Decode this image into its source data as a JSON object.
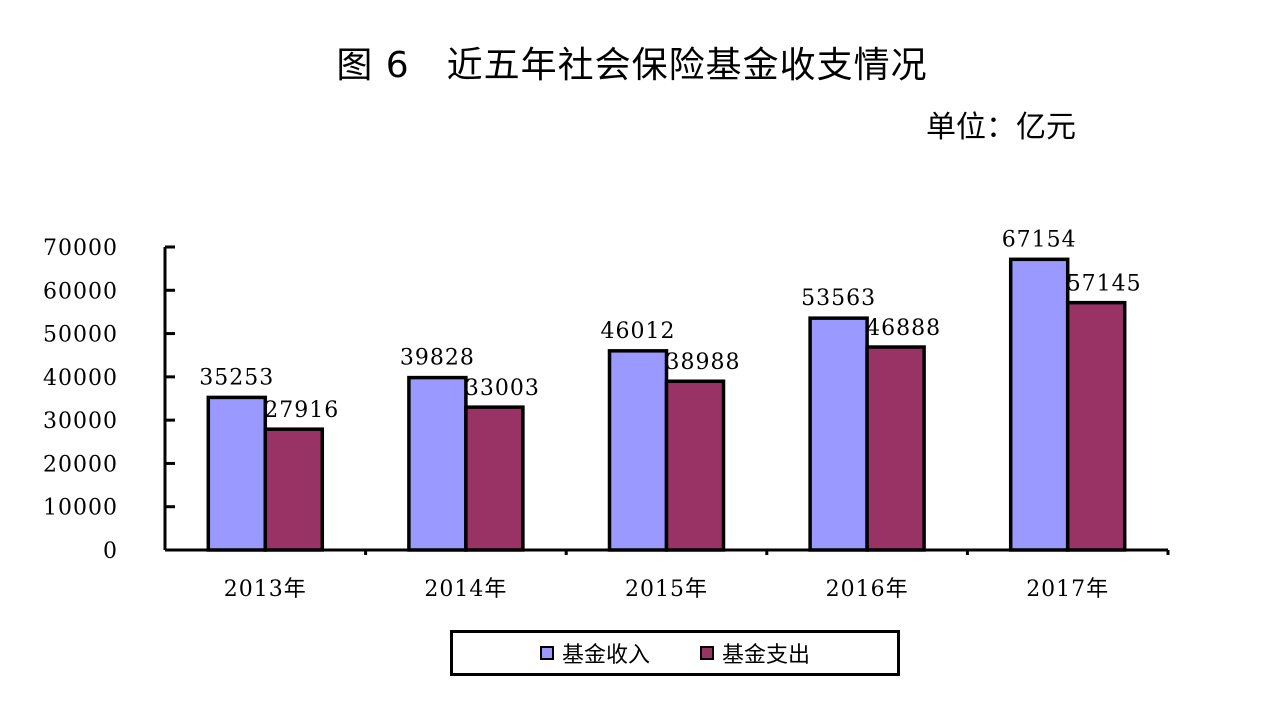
{
  "chart_data": {
    "type": "bar",
    "title": "图 6　近五年社会保险基金收支情况",
    "unit": "单位：亿元",
    "categories": [
      "2013年",
      "2014年",
      "2015年",
      "2016年",
      "2017年"
    ],
    "series": [
      {
        "name": "基金收入",
        "values": [
          35253,
          39828,
          46012,
          53563,
          67154
        ],
        "color": "#9999FF"
      },
      {
        "name": "基金支出",
        "values": [
          27916,
          33003,
          38988,
          46888,
          57145
        ],
        "color": "#993366"
      }
    ],
    "ylim": [
      0,
      70000
    ],
    "yticks": [
      "0",
      "10000",
      "20000",
      "30000",
      "40000",
      "50000",
      "60000",
      "70000"
    ],
    "grid": false,
    "legend_position": "bottom"
  }
}
